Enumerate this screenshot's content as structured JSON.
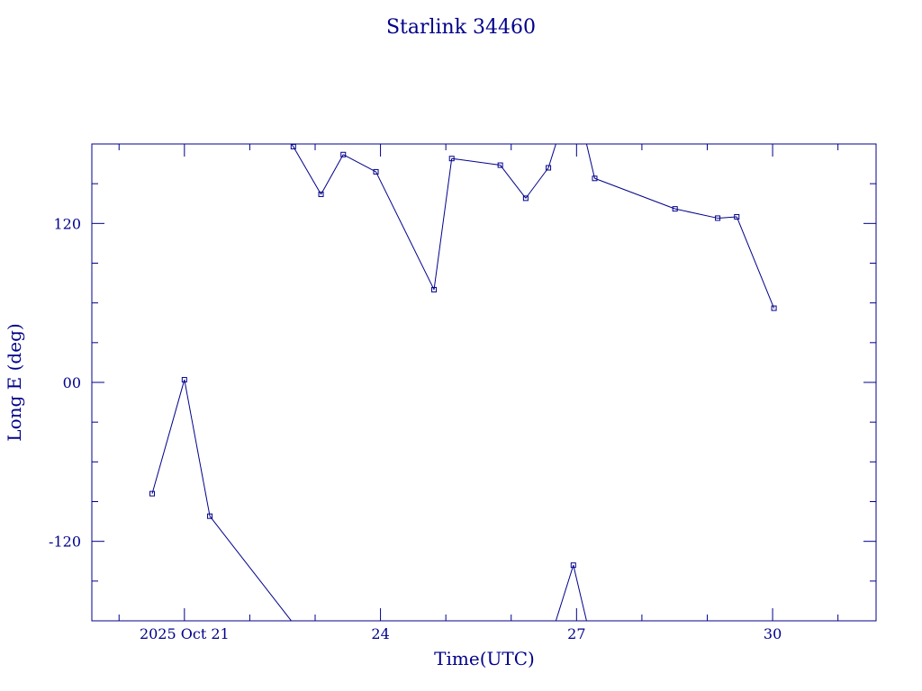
{
  "chart_data": {
    "type": "line",
    "title": "Starlink 34460",
    "xlabel": "Time(UTC)",
    "ylabel": "Long E (deg)",
    "x_unit": "days",
    "xlim": [
      "2025-10-19T14:00",
      "2025-10-31T14:00"
    ],
    "ylim": [
      -180,
      180
    ],
    "x_ticks": [
      {
        "x": "2025-10-21T00:00",
        "label": "2025 Oct 21"
      },
      {
        "x": "2025-10-24T00:00",
        "label": "24"
      },
      {
        "x": "2025-10-27T00:00",
        "label": "27"
      },
      {
        "x": "2025-10-30T00:00",
        "label": "30"
      }
    ],
    "y_ticks": [
      {
        "y": 120,
        "label": "120"
      },
      {
        "y": 0,
        "label": "00"
      },
      {
        "y": -120,
        "label": "-120"
      }
    ],
    "series": [
      {
        "color": "#00008b",
        "wrap": true,
        "points": [
          {
            "x": "2025-10-20T12:10",
            "y": -84
          },
          {
            "x": "2025-10-21T00:00",
            "y": 2
          },
          {
            "x": "2025-10-21T09:20",
            "y": -101
          },
          {
            "x": "2025-10-22T16:00",
            "y": 178
          },
          {
            "x": "2025-10-23T02:10",
            "y": 142
          },
          {
            "x": "2025-10-23T10:20",
            "y": 172
          },
          {
            "x": "2025-10-23T22:20",
            "y": 159
          },
          {
            "x": "2025-10-24T19:40",
            "y": 70
          },
          {
            "x": "2025-10-25T02:10",
            "y": 169
          },
          {
            "x": "2025-10-25T20:00",
            "y": 164
          },
          {
            "x": "2025-10-26T05:20",
            "y": 139
          },
          {
            "x": "2025-10-26T13:40",
            "y": 162
          },
          {
            "x": "2025-10-26T22:50",
            "y": -138
          },
          {
            "x": "2025-10-27T06:40",
            "y": 154
          },
          {
            "x": "2025-10-28T12:10",
            "y": 131
          },
          {
            "x": "2025-10-29T03:50",
            "y": 124
          },
          {
            "x": "2025-10-29T10:50",
            "y": 125
          },
          {
            "x": "2025-10-30T00:30",
            "y": 56
          }
        ]
      }
    ],
    "grid": false,
    "marker": "square"
  }
}
